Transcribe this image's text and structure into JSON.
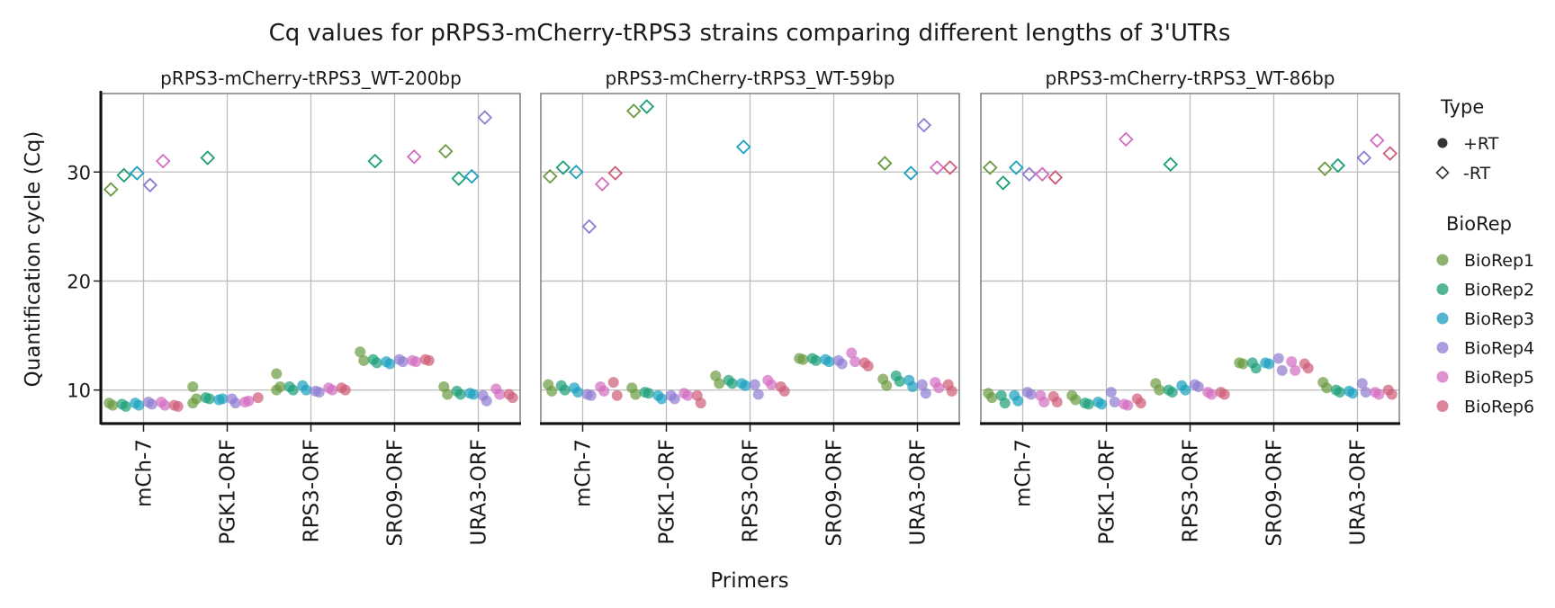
{
  "chart_data": {
    "type": "scatter",
    "title": "Cq values for pRPS3-mCherry-tRPS3 strains comparing different lengths of 3'UTRs",
    "xlabel": "Primers",
    "ylabel": "Quantification cycle (Cq)",
    "categories": [
      "mCh-7",
      "PGK1-ORF",
      "RPS3-ORF",
      "SRO9-ORF",
      "URA3-ORF"
    ],
    "ylim": [
      7,
      37.2
    ],
    "yticks": [
      10,
      20,
      30
    ],
    "grid": true,
    "legend_position": "right",
    "legend_type_title": "Type",
    "legend_type": [
      {
        "label": "+RT",
        "shape": "filled-circle"
      },
      {
        "label": "-RT",
        "shape": "open-diamond"
      }
    ],
    "legend_biorep_title": "BioRep",
    "bioreps": [
      {
        "name": "BioRep1",
        "color": "#6a9a3f"
      },
      {
        "name": "BioRep2",
        "color": "#1b9e77"
      },
      {
        "name": "BioRep3",
        "color": "#1a9fbf"
      },
      {
        "name": "BioRep4",
        "color": "#8f7bd2"
      },
      {
        "name": "BioRep5",
        "color": "#d26cc0"
      },
      {
        "name": "BioRep6",
        "color": "#cf5b78"
      }
    ],
    "panels": [
      {
        "title": "pRPS3-mCherry-tRPS3_WT-200bp",
        "plus_rt": [
          [
            [
              8.8,
              8.6
            ],
            [
              8.7,
              8.5
            ],
            [
              8.8,
              8.6
            ],
            [
              8.9,
              8.7
            ],
            [
              8.9,
              8.6
            ],
            [
              8.6,
              8.5
            ]
          ],
          [
            [
              10.3,
              9.2,
              8.8
            ],
            [
              9.3,
              9.2
            ],
            [
              9.1,
              9.2
            ],
            [
              9.2,
              8.8
            ],
            [
              8.9,
              9.0
            ],
            [
              9.3
            ]
          ],
          [
            [
              11.5,
              10.3,
              10.0
            ],
            [
              10.3,
              10.0
            ],
            [
              10.4,
              10.0
            ],
            [
              9.9,
              9.8
            ],
            [
              10.2,
              10.0
            ],
            [
              10.2,
              10.0
            ]
          ],
          [
            [
              13.5,
              12.7
            ],
            [
              12.8,
              12.5
            ],
            [
              12.6,
              12.4
            ],
            [
              12.8,
              12.6
            ],
            [
              12.7,
              12.6
            ],
            [
              12.8,
              12.7
            ]
          ],
          [
            [
              10.3,
              9.6
            ],
            [
              9.9,
              9.6
            ],
            [
              9.7,
              9.6
            ],
            [
              9.5,
              9.0
            ],
            [
              10.1,
              9.6
            ],
            [
              9.6,
              9.3
            ]
          ]
        ],
        "minus_rt": [
          [
            [
              28.4
            ],
            [
              29.7
            ],
            [
              29.9
            ],
            [
              28.8
            ],
            [
              31.0
            ],
            []
          ],
          [
            [],
            [
              31.3
            ],
            [],
            [],
            [],
            []
          ],
          [
            [],
            [],
            [],
            [],
            [],
            []
          ],
          [
            [],
            [
              31.0
            ],
            [],
            [],
            [
              31.4
            ],
            []
          ],
          [
            [
              31.9
            ],
            [
              29.4
            ],
            [
              29.6
            ],
            [
              35.0
            ],
            [],
            []
          ]
        ]
      },
      {
        "title": "pRPS3-mCherry-tRPS3_WT-59bp",
        "plus_rt": [
          [
            [
              10.5,
              9.9
            ],
            [
              10.4,
              10.0
            ],
            [
              10.2,
              9.8
            ],
            [
              9.6,
              9.5
            ],
            [
              10.3,
              9.9
            ],
            [
              10.7,
              9.5
            ]
          ],
          [
            [
              10.2,
              9.6
            ],
            [
              9.8,
              9.7
            ],
            [
              9.5,
              9.2
            ],
            [
              9.5,
              9.2
            ],
            [
              9.7,
              9.5
            ],
            [
              9.5,
              8.8
            ]
          ],
          [
            [
              11.3,
              10.6
            ],
            [
              10.9,
              10.6
            ],
            [
              10.6,
              10.4
            ],
            [
              10.5,
              9.6
            ],
            [
              10.9,
              10.5
            ],
            [
              10.3,
              9.9
            ]
          ],
          [
            [
              12.9,
              12.8
            ],
            [
              12.9,
              12.7
            ],
            [
              12.8,
              12.6
            ],
            [
              12.7,
              12.4
            ],
            [
              13.4,
              12.6
            ],
            [
              12.5,
              12.2
            ]
          ],
          [
            [
              11.0,
              10.4
            ],
            [
              11.3,
              10.8
            ],
            [
              10.9,
              10.3
            ],
            [
              10.5,
              9.7
            ],
            [
              10.7,
              10.2
            ],
            [
              10.5,
              9.9
            ]
          ]
        ],
        "minus_rt": [
          [
            [
              29.6
            ],
            [
              30.4
            ],
            [
              30.0
            ],
            [
              25.0
            ],
            [
              28.9
            ],
            [
              29.9
            ]
          ],
          [
            [
              35.6
            ],
            [
              36.0
            ],
            [],
            [],
            [],
            []
          ],
          [
            [],
            [],
            [
              32.3
            ],
            [],
            [],
            []
          ],
          [
            [],
            [],
            [],
            [],
            [],
            []
          ],
          [
            [
              30.8
            ],
            [],
            [
              29.9
            ],
            [
              34.3
            ],
            [
              30.4
            ],
            [
              30.4
            ]
          ]
        ]
      },
      {
        "title": "pRPS3-mCherry-tRPS3_WT-86bp",
        "plus_rt": [
          [
            [
              9.7,
              9.3
            ],
            [
              9.5,
              8.8
            ],
            [
              9.5,
              9.0
            ],
            [
              9.8,
              9.6
            ],
            [
              9.5,
              8.9
            ],
            [
              9.4,
              8.9
            ]
          ],
          [
            [
              9.5,
              9.1
            ],
            [
              8.8,
              8.7
            ],
            [
              8.9,
              8.7
            ],
            [
              9.8,
              8.9
            ],
            [
              8.7,
              8.6
            ],
            [
              9.2,
              8.8
            ]
          ],
          [
            [
              10.6,
              10.0
            ],
            [
              10.0,
              9.8
            ],
            [
              10.4,
              10.0
            ],
            [
              10.5,
              10.3
            ],
            [
              9.8,
              9.6
            ],
            [
              9.8,
              9.6
            ]
          ],
          [
            [
              12.5,
              12.4
            ],
            [
              12.5,
              12.0
            ],
            [
              12.5,
              12.4
            ],
            [
              12.9,
              11.8
            ],
            [
              12.6,
              11.8
            ],
            [
              12.4,
              12.0
            ]
          ],
          [
            [
              10.7,
              10.2
            ],
            [
              10.0,
              9.8
            ],
            [
              9.9,
              9.7
            ],
            [
              10.6,
              9.8
            ],
            [
              9.8,
              9.6
            ],
            [
              10.0,
              9.6
            ]
          ]
        ],
        "minus_rt": [
          [
            [
              30.4
            ],
            [
              29.0
            ],
            [
              30.4
            ],
            [
              29.8
            ],
            [
              29.8
            ],
            [
              29.5
            ]
          ],
          [
            [],
            [],
            [],
            [],
            [
              33.0
            ],
            []
          ],
          [
            [],
            [
              30.7
            ],
            [],
            [],
            [],
            []
          ],
          [
            [],
            [],
            [],
            [],
            [],
            []
          ],
          [
            [
              30.3
            ],
            [
              30.6
            ],
            [],
            [
              31.3
            ],
            [
              32.9
            ],
            [
              31.7
            ]
          ]
        ]
      }
    ]
  }
}
